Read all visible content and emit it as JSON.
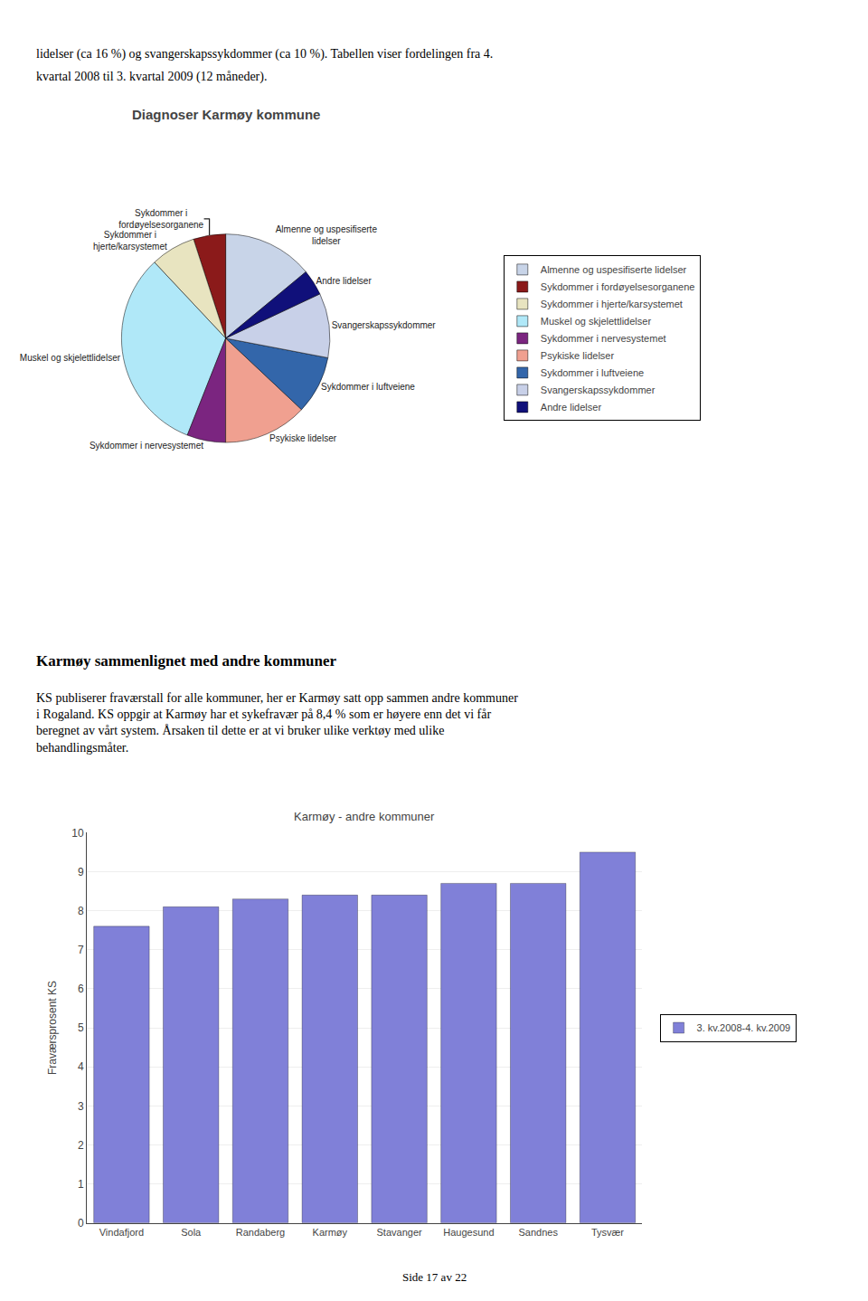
{
  "page": {
    "header_lines": [
      "lidelser (ca 16 %) og svangerskapssykdommer (ca 10 %). Tabellen viser fordelingen fra 4.",
      "kvartal 2008 til 3. kvartal 2009 (12 måneder)."
    ],
    "section_title": "Karmøy sammenlignet med andre kommuner",
    "section_body": "KS publiserer fraværstall for alle kommuner, her er Karmøy satt opp sammen andre kommuner\ni Rogaland. KS oppgir at Karmøy har et sykefravær på 8,4 % som er høyere enn det vi får\nberegnet av vårt system. Årsaken til dette er at vi bruker ulike verktøy med ulike\nbehandlingsmåter.",
    "footer": "Side 17 av 22"
  },
  "chart_data": [
    {
      "type": "pie",
      "title": "Diagnoser Karmøy kommune",
      "categories": [
        "Almenne og uspesifiserte lidelser",
        "Sykdommer i fordøyelsesorganene",
        "Sykdommer i hjerte/karsystemet",
        "Muskel og skjelettlidelser",
        "Sykdommer i nervesystemet",
        "Psykiske lidelser",
        "Sykdommer i luftveiene",
        "Svangerskapssykdommer",
        "Andre lidelser"
      ],
      "values": [
        14,
        5,
        7,
        32,
        6,
        13,
        9,
        10,
        4
      ],
      "colors": [
        "#c8d4e8",
        "#8b1a1a",
        "#e8e4c0",
        "#b0e8f8",
        "#7b2580",
        "#f0a090",
        "#3366aa",
        "#c8d0e8",
        "#10107a"
      ],
      "annotations": [
        "Almenne og uspesifiserte\nlidelser",
        "Sykdommer i\nfordøyelsesorganene",
        "Sykdommer i\nhjerte/karsystemet",
        "Muskel og skjelettlidelser",
        "Sykdommer i nervesystemet",
        "Psykiske lidelser",
        "Sykdommer i luftveiene",
        "Svangerskapssykdommer",
        "Andre lidelser"
      ],
      "legend": "right"
    },
    {
      "type": "bar",
      "title": "Karmøy - andre kommuner",
      "categories": [
        "Vindafjord",
        "Sola",
        "Randaberg",
        "Karmøy",
        "Stavanger",
        "Haugesund",
        "Sandnes",
        "Tysvær"
      ],
      "series": [
        {
          "name": "3. kv.2008-4. kv.2009",
          "color": "#8080d8",
          "values": [
            7.6,
            8.1,
            8.3,
            8.4,
            8.4,
            8.7,
            8.7,
            9.5
          ]
        }
      ],
      "ylabel": "Fraværsprosent KS",
      "ylim": [
        0,
        10
      ],
      "yticks": [
        0,
        1,
        2,
        3,
        4,
        5,
        6,
        7,
        8,
        9,
        10
      ],
      "grid": true,
      "legend": "right"
    }
  ]
}
